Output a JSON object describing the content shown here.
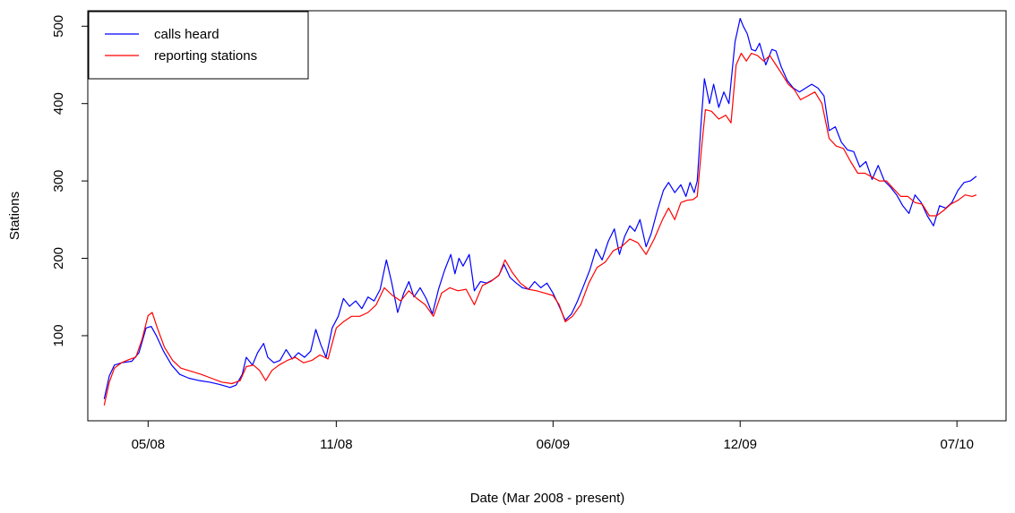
{
  "chart_data": {
    "type": "line",
    "title": "",
    "xlabel": "Date (Mar 2008 - present)",
    "ylabel": "Stations",
    "x_tick_labels": [
      "05/08",
      "11/08",
      "06/09",
      "12/09",
      "07/10"
    ],
    "x_tick_dates": [
      "2008-05-01",
      "2008-11-01",
      "2009-06-01",
      "2009-12-01",
      "2010-07-01"
    ],
    "y_tick_labels": [
      "100",
      "200",
      "300",
      "400",
      "500"
    ],
    "xlim": [
      "2008-03-03",
      "2010-08-18"
    ],
    "ylim": [
      -10,
      520
    ],
    "grid": false,
    "legend_position": "top-left",
    "series": [
      {
        "name": "calls heard",
        "color": "#0000ff",
        "points": [
          [
            "2008-03-19",
            18
          ],
          [
            "2008-03-24",
            48
          ],
          [
            "2008-03-29",
            62
          ],
          [
            "2008-04-05",
            65
          ],
          [
            "2008-04-15",
            67
          ],
          [
            "2008-04-22",
            78
          ],
          [
            "2008-04-29",
            110
          ],
          [
            "2008-05-04",
            112
          ],
          [
            "2008-05-09",
            100
          ],
          [
            "2008-05-16",
            80
          ],
          [
            "2008-05-24",
            62
          ],
          [
            "2008-06-01",
            50
          ],
          [
            "2008-06-10",
            45
          ],
          [
            "2008-06-20",
            42
          ],
          [
            "2008-06-30",
            40
          ],
          [
            "2008-07-10",
            37
          ],
          [
            "2008-07-20",
            33
          ],
          [
            "2008-07-26",
            36
          ],
          [
            "2008-08-01",
            50
          ],
          [
            "2008-08-05",
            72
          ],
          [
            "2008-08-11",
            62
          ],
          [
            "2008-08-16",
            78
          ],
          [
            "2008-08-22",
            90
          ],
          [
            "2008-08-26",
            72
          ],
          [
            "2008-09-01",
            65
          ],
          [
            "2008-09-07",
            68
          ],
          [
            "2008-09-13",
            82
          ],
          [
            "2008-09-19",
            70
          ],
          [
            "2008-09-25",
            78
          ],
          [
            "2008-10-01",
            72
          ],
          [
            "2008-10-07",
            80
          ],
          [
            "2008-10-12",
            108
          ],
          [
            "2008-10-17",
            88
          ],
          [
            "2008-10-22",
            72
          ],
          [
            "2008-10-28",
            110
          ],
          [
            "2008-11-03",
            125
          ],
          [
            "2008-11-08",
            148
          ],
          [
            "2008-11-14",
            138
          ],
          [
            "2008-11-20",
            145
          ],
          [
            "2008-11-26",
            135
          ],
          [
            "2008-12-02",
            150
          ],
          [
            "2008-12-08",
            145
          ],
          [
            "2008-12-14",
            160
          ],
          [
            "2008-12-20",
            198
          ],
          [
            "2008-12-25",
            170
          ],
          [
            "2008-12-31",
            130
          ],
          [
            "2009-01-06",
            155
          ],
          [
            "2009-01-11",
            170
          ],
          [
            "2009-01-16",
            150
          ],
          [
            "2009-01-22",
            162
          ],
          [
            "2009-01-28",
            148
          ],
          [
            "2009-02-03",
            128
          ],
          [
            "2009-02-09",
            160
          ],
          [
            "2009-02-15",
            185
          ],
          [
            "2009-02-21",
            205
          ],
          [
            "2009-02-25",
            180
          ],
          [
            "2009-03-01",
            200
          ],
          [
            "2009-03-05",
            190
          ],
          [
            "2009-03-11",
            205
          ],
          [
            "2009-03-16",
            158
          ],
          [
            "2009-03-22",
            170
          ],
          [
            "2009-03-28",
            168
          ],
          [
            "2009-04-03",
            172
          ],
          [
            "2009-04-09",
            178
          ],
          [
            "2009-04-14",
            192
          ],
          [
            "2009-04-20",
            175
          ],
          [
            "2009-04-26",
            168
          ],
          [
            "2009-05-02",
            162
          ],
          [
            "2009-05-08",
            160
          ],
          [
            "2009-05-14",
            170
          ],
          [
            "2009-05-20",
            162
          ],
          [
            "2009-05-26",
            168
          ],
          [
            "2009-06-01",
            155
          ],
          [
            "2009-06-07",
            138
          ],
          [
            "2009-06-13",
            120
          ],
          [
            "2009-06-19",
            128
          ],
          [
            "2009-06-25",
            145
          ],
          [
            "2009-07-01",
            165
          ],
          [
            "2009-07-07",
            185
          ],
          [
            "2009-07-13",
            212
          ],
          [
            "2009-07-19",
            198
          ],
          [
            "2009-07-25",
            222
          ],
          [
            "2009-07-31",
            238
          ],
          [
            "2009-08-05",
            205
          ],
          [
            "2009-08-10",
            228
          ],
          [
            "2009-08-15",
            242
          ],
          [
            "2009-08-20",
            235
          ],
          [
            "2009-08-25",
            250
          ],
          [
            "2009-08-31",
            215
          ],
          [
            "2009-09-05",
            232
          ],
          [
            "2009-09-11",
            262
          ],
          [
            "2009-09-17",
            288
          ],
          [
            "2009-09-22",
            298
          ],
          [
            "2009-09-28",
            285
          ],
          [
            "2009-10-04",
            295
          ],
          [
            "2009-10-09",
            280
          ],
          [
            "2009-10-13",
            298
          ],
          [
            "2009-10-17",
            285
          ],
          [
            "2009-10-20",
            300
          ],
          [
            "2009-10-24",
            380
          ],
          [
            "2009-10-27",
            432
          ],
          [
            "2009-11-01",
            400
          ],
          [
            "2009-11-05",
            425
          ],
          [
            "2009-11-10",
            395
          ],
          [
            "2009-11-15",
            415
          ],
          [
            "2009-11-20",
            400
          ],
          [
            "2009-11-26",
            480
          ],
          [
            "2009-12-01",
            510
          ],
          [
            "2009-12-04",
            500
          ],
          [
            "2009-12-08",
            490
          ],
          [
            "2009-12-12",
            470
          ],
          [
            "2009-12-16",
            468
          ],
          [
            "2009-12-20",
            478
          ],
          [
            "2009-12-26",
            450
          ],
          [
            "2010-01-01",
            470
          ],
          [
            "2010-01-05",
            468
          ],
          [
            "2010-01-10",
            448
          ],
          [
            "2010-01-16",
            430
          ],
          [
            "2010-01-22",
            420
          ],
          [
            "2010-01-28",
            415
          ],
          [
            "2010-02-03",
            420
          ],
          [
            "2010-02-09",
            425
          ],
          [
            "2010-02-15",
            420
          ],
          [
            "2010-02-21",
            410
          ],
          [
            "2010-02-26",
            365
          ],
          [
            "2010-03-04",
            370
          ],
          [
            "2010-03-10",
            350
          ],
          [
            "2010-03-16",
            340
          ],
          [
            "2010-03-22",
            338
          ],
          [
            "2010-03-28",
            318
          ],
          [
            "2010-04-03",
            325
          ],
          [
            "2010-04-09",
            302
          ],
          [
            "2010-04-15",
            320
          ],
          [
            "2010-04-21",
            300
          ],
          [
            "2010-04-27",
            292
          ],
          [
            "2010-05-03",
            282
          ],
          [
            "2010-05-09",
            268
          ],
          [
            "2010-05-15",
            258
          ],
          [
            "2010-05-21",
            282
          ],
          [
            "2010-05-27",
            272
          ],
          [
            "2010-06-02",
            255
          ],
          [
            "2010-06-08",
            242
          ],
          [
            "2010-06-14",
            268
          ],
          [
            "2010-06-20",
            265
          ],
          [
            "2010-06-26",
            272
          ],
          [
            "2010-07-02",
            288
          ],
          [
            "2010-07-08",
            298
          ],
          [
            "2010-07-14",
            300
          ],
          [
            "2010-07-20",
            306
          ]
        ]
      },
      {
        "name": "reporting stations",
        "color": "#ff0000",
        "points": [
          [
            "2008-03-19",
            10
          ],
          [
            "2008-03-24",
            40
          ],
          [
            "2008-03-29",
            58
          ],
          [
            "2008-04-05",
            65
          ],
          [
            "2008-04-12",
            69
          ],
          [
            "2008-04-19",
            72
          ],
          [
            "2008-04-25",
            95
          ],
          [
            "2008-05-01",
            126
          ],
          [
            "2008-05-05",
            130
          ],
          [
            "2008-05-10",
            110
          ],
          [
            "2008-05-17",
            85
          ],
          [
            "2008-05-25",
            68
          ],
          [
            "2008-06-02",
            58
          ],
          [
            "2008-06-12",
            54
          ],
          [
            "2008-06-22",
            50
          ],
          [
            "2008-07-02",
            45
          ],
          [
            "2008-07-12",
            40
          ],
          [
            "2008-07-22",
            38
          ],
          [
            "2008-07-30",
            42
          ],
          [
            "2008-08-05",
            60
          ],
          [
            "2008-08-12",
            62
          ],
          [
            "2008-08-18",
            55
          ],
          [
            "2008-08-24",
            42
          ],
          [
            "2008-08-30",
            55
          ],
          [
            "2008-09-06",
            62
          ],
          [
            "2008-09-14",
            68
          ],
          [
            "2008-09-22",
            72
          ],
          [
            "2008-09-30",
            65
          ],
          [
            "2008-10-08",
            68
          ],
          [
            "2008-10-16",
            75
          ],
          [
            "2008-10-24",
            70
          ],
          [
            "2008-11-01",
            110
          ],
          [
            "2008-11-08",
            118
          ],
          [
            "2008-11-16",
            125
          ],
          [
            "2008-11-24",
            125
          ],
          [
            "2008-12-02",
            130
          ],
          [
            "2008-12-10",
            140
          ],
          [
            "2008-12-18",
            162
          ],
          [
            "2008-12-26",
            152
          ],
          [
            "2009-01-03",
            145
          ],
          [
            "2009-01-11",
            158
          ],
          [
            "2009-01-19",
            148
          ],
          [
            "2009-01-27",
            140
          ],
          [
            "2009-02-04",
            125
          ],
          [
            "2009-02-12",
            155
          ],
          [
            "2009-02-20",
            162
          ],
          [
            "2009-02-28",
            158
          ],
          [
            "2009-03-08",
            160
          ],
          [
            "2009-03-16",
            140
          ],
          [
            "2009-03-24",
            165
          ],
          [
            "2009-04-01",
            170
          ],
          [
            "2009-04-09",
            178
          ],
          [
            "2009-04-15",
            198
          ],
          [
            "2009-04-22",
            182
          ],
          [
            "2009-04-30",
            168
          ],
          [
            "2009-05-08",
            160
          ],
          [
            "2009-05-16",
            158
          ],
          [
            "2009-05-24",
            155
          ],
          [
            "2009-06-01",
            152
          ],
          [
            "2009-06-07",
            140
          ],
          [
            "2009-06-13",
            118
          ],
          [
            "2009-06-20",
            125
          ],
          [
            "2009-06-28",
            140
          ],
          [
            "2009-07-06",
            168
          ],
          [
            "2009-07-14",
            188
          ],
          [
            "2009-07-22",
            195
          ],
          [
            "2009-07-30",
            210
          ],
          [
            "2009-08-07",
            215
          ],
          [
            "2009-08-15",
            225
          ],
          [
            "2009-08-23",
            220
          ],
          [
            "2009-08-31",
            205
          ],
          [
            "2009-09-08",
            225
          ],
          [
            "2009-09-16",
            250
          ],
          [
            "2009-09-22",
            265
          ],
          [
            "2009-09-28",
            250
          ],
          [
            "2009-10-04",
            272
          ],
          [
            "2009-10-10",
            275
          ],
          [
            "2009-10-16",
            276
          ],
          [
            "2009-10-20",
            280
          ],
          [
            "2009-10-24",
            340
          ],
          [
            "2009-10-28",
            392
          ],
          [
            "2009-11-03",
            390
          ],
          [
            "2009-11-10",
            380
          ],
          [
            "2009-11-17",
            385
          ],
          [
            "2009-11-22",
            375
          ],
          [
            "2009-11-27",
            450
          ],
          [
            "2009-12-02",
            465
          ],
          [
            "2009-12-07",
            455
          ],
          [
            "2009-12-12",
            465
          ],
          [
            "2009-12-18",
            462
          ],
          [
            "2009-12-24",
            455
          ],
          [
            "2009-12-30",
            462
          ],
          [
            "2010-01-05",
            450
          ],
          [
            "2010-01-11",
            438
          ],
          [
            "2010-01-17",
            425
          ],
          [
            "2010-01-23",
            418
          ],
          [
            "2010-01-29",
            405
          ],
          [
            "2010-02-05",
            410
          ],
          [
            "2010-02-12",
            415
          ],
          [
            "2010-02-19",
            400
          ],
          [
            "2010-02-26",
            355
          ],
          [
            "2010-03-05",
            345
          ],
          [
            "2010-03-12",
            342
          ],
          [
            "2010-03-19",
            325
          ],
          [
            "2010-03-26",
            310
          ],
          [
            "2010-04-02",
            310
          ],
          [
            "2010-04-09",
            305
          ],
          [
            "2010-04-16",
            300
          ],
          [
            "2010-04-23",
            300
          ],
          [
            "2010-04-30",
            290
          ],
          [
            "2010-05-07",
            280
          ],
          [
            "2010-05-14",
            280
          ],
          [
            "2010-05-21",
            272
          ],
          [
            "2010-05-28",
            270
          ],
          [
            "2010-06-04",
            255
          ],
          [
            "2010-06-11",
            255
          ],
          [
            "2010-06-18",
            262
          ],
          [
            "2010-06-25",
            270
          ],
          [
            "2010-07-02",
            275
          ],
          [
            "2010-07-09",
            282
          ],
          [
            "2010-07-16",
            280
          ],
          [
            "2010-07-20",
            282
          ]
        ]
      }
    ]
  }
}
